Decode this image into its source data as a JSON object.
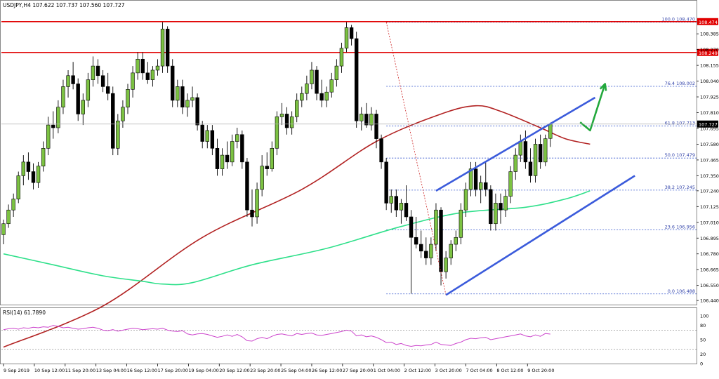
{
  "chart_data": [
    {
      "type": "candlestick",
      "title": "USDJPY,H4  107.622 107.737 107.560 107.727",
      "symbol": "USDJPY",
      "timeframe": "H4",
      "ohlc_header": {
        "open": 107.622,
        "high": 107.737,
        "low": 107.56,
        "close": 107.727
      },
      "last_price": "107.727",
      "ylim": [
        106.41,
        108.56
      ],
      "y_ticks": [
        "108.385",
        "108.270",
        "108.155",
        "108.040",
        "107.925",
        "107.810",
        "107.695",
        "107.580",
        "107.465",
        "107.350",
        "107.240",
        "107.125",
        "107.010",
        "106.895",
        "106.780",
        "106.665",
        "106.550",
        "106.440"
      ],
      "x_ticks": [
        "9 Sep 2019",
        "10 Sep 12:00",
        "11 Sep 20:00",
        "13 Sep 04:00",
        "16 Sep 12:00",
        "17 Sep 20:00",
        "19 Sep 04:00",
        "20 Sep 12:00",
        "23 Sep 20:00",
        "25 Sep 04:00",
        "26 Sep 12:00",
        "27 Sep 20:00",
        "1 Oct 04:00",
        "2 Oct 12:00",
        "3 Oct 20:00",
        "7 Oct 04:00",
        "8 Oct 12:00",
        "9 Oct 20:00"
      ],
      "colors": {
        "bull": "#7cc242",
        "bear": "#000000",
        "ma_slow": "#b22222",
        "ma_fast": "#2ee08a",
        "fib": "#3355cc",
        "channel": "#3b5bdb",
        "resistance": "#e00000",
        "arrow": "#22a83c"
      },
      "resistance_lines": [
        {
          "price": 108.474,
          "label": "108.474"
        },
        {
          "price": 108.249,
          "label": "108.249"
        }
      ],
      "fibonacci": [
        {
          "label": "100.0 108.470",
          "price": 108.47
        },
        {
          "label": "76.4 108.002",
          "price": 108.002
        },
        {
          "label": "61.8 107.713",
          "price": 107.713
        },
        {
          "label": "50.0 107.479",
          "price": 107.479
        },
        {
          "label": "38.2 107.245",
          "price": 107.245
        },
        {
          "label": "23.6 106.956",
          "price": 106.956
        },
        {
          "label": "0.0 106.488",
          "price": 106.488
        }
      ],
      "candles": [
        {
          "o": 106.92,
          "h": 107.03,
          "l": 106.85,
          "c": 107.0
        },
        {
          "o": 107.0,
          "h": 107.14,
          "l": 106.97,
          "c": 107.1
        },
        {
          "o": 107.1,
          "h": 107.22,
          "l": 107.05,
          "c": 107.18
        },
        {
          "o": 107.18,
          "h": 107.38,
          "l": 107.15,
          "c": 107.35
        },
        {
          "o": 107.35,
          "h": 107.5,
          "l": 107.28,
          "c": 107.45
        },
        {
          "o": 107.45,
          "h": 107.52,
          "l": 107.32,
          "c": 107.38
        },
        {
          "o": 107.38,
          "h": 107.44,
          "l": 107.25,
          "c": 107.3
        },
        {
          "o": 107.3,
          "h": 107.45,
          "l": 107.26,
          "c": 107.42
        },
        {
          "o": 107.42,
          "h": 107.6,
          "l": 107.38,
          "c": 107.55
        },
        {
          "o": 107.55,
          "h": 107.78,
          "l": 107.5,
          "c": 107.72
        },
        {
          "o": 107.72,
          "h": 107.82,
          "l": 107.62,
          "c": 107.7
        },
        {
          "o": 107.7,
          "h": 107.9,
          "l": 107.66,
          "c": 107.85
        },
        {
          "o": 107.85,
          "h": 108.05,
          "l": 107.8,
          "c": 108.0
        },
        {
          "o": 108.0,
          "h": 108.12,
          "l": 107.92,
          "c": 108.08
        },
        {
          "o": 108.08,
          "h": 108.18,
          "l": 107.98,
          "c": 108.02
        },
        {
          "o": 108.02,
          "h": 108.06,
          "l": 107.75,
          "c": 107.8
        },
        {
          "o": 107.8,
          "h": 107.95,
          "l": 107.72,
          "c": 107.9
        },
        {
          "o": 107.9,
          "h": 108.1,
          "l": 107.85,
          "c": 108.05
        },
        {
          "o": 108.05,
          "h": 108.22,
          "l": 108.0,
          "c": 108.15
        },
        {
          "o": 108.15,
          "h": 108.2,
          "l": 108.02,
          "c": 108.08
        },
        {
          "o": 108.08,
          "h": 108.12,
          "l": 107.96,
          "c": 108.0
        },
        {
          "o": 108.0,
          "h": 108.1,
          "l": 107.9,
          "c": 107.95
        },
        {
          "o": 107.95,
          "h": 108.0,
          "l": 107.5,
          "c": 107.55
        },
        {
          "o": 107.55,
          "h": 107.8,
          "l": 107.5,
          "c": 107.75
        },
        {
          "o": 107.75,
          "h": 107.9,
          "l": 107.7,
          "c": 107.85
        },
        {
          "o": 107.85,
          "h": 108.02,
          "l": 107.8,
          "c": 107.98
        },
        {
          "o": 107.98,
          "h": 108.15,
          "l": 107.92,
          "c": 108.1
        },
        {
          "o": 108.1,
          "h": 108.25,
          "l": 108.05,
          "c": 108.2
        },
        {
          "o": 108.2,
          "h": 108.25,
          "l": 108.05,
          "c": 108.1
        },
        {
          "o": 108.1,
          "h": 108.18,
          "l": 108.02,
          "c": 108.05
        },
        {
          "o": 108.05,
          "h": 108.15,
          "l": 108.0,
          "c": 108.12
        },
        {
          "o": 108.12,
          "h": 108.2,
          "l": 108.08,
          "c": 108.15
        },
        {
          "o": 108.15,
          "h": 108.47,
          "l": 108.1,
          "c": 108.42
        },
        {
          "o": 108.42,
          "h": 108.44,
          "l": 108.1,
          "c": 108.15
        },
        {
          "o": 108.15,
          "h": 108.2,
          "l": 107.85,
          "c": 107.9
        },
        {
          "o": 107.9,
          "h": 108.05,
          "l": 107.85,
          "c": 108.0
        },
        {
          "o": 108.0,
          "h": 108.05,
          "l": 107.8,
          "c": 107.85
        },
        {
          "o": 107.85,
          "h": 107.95,
          "l": 107.78,
          "c": 107.9
        },
        {
          "o": 107.9,
          "h": 108.0,
          "l": 107.85,
          "c": 107.92
        },
        {
          "o": 107.92,
          "h": 107.95,
          "l": 107.68,
          "c": 107.72
        },
        {
          "o": 107.72,
          "h": 107.75,
          "l": 107.55,
          "c": 107.6
        },
        {
          "o": 107.6,
          "h": 107.72,
          "l": 107.55,
          "c": 107.68
        },
        {
          "o": 107.68,
          "h": 107.72,
          "l": 107.5,
          "c": 107.55
        },
        {
          "o": 107.55,
          "h": 107.62,
          "l": 107.35,
          "c": 107.4
        },
        {
          "o": 107.4,
          "h": 107.55,
          "l": 107.35,
          "c": 107.5
        },
        {
          "o": 107.5,
          "h": 107.6,
          "l": 107.4,
          "c": 107.45
        },
        {
          "o": 107.45,
          "h": 107.65,
          "l": 107.42,
          "c": 107.6
        },
        {
          "o": 107.6,
          "h": 107.7,
          "l": 107.55,
          "c": 107.65
        },
        {
          "o": 107.65,
          "h": 107.68,
          "l": 107.4,
          "c": 107.45
        },
        {
          "o": 107.45,
          "h": 107.48,
          "l": 107.05,
          "c": 107.1
        },
        {
          "o": 107.1,
          "h": 107.25,
          "l": 106.98,
          "c": 107.05
        },
        {
          "o": 107.05,
          "h": 107.3,
          "l": 107.0,
          "c": 107.25
        },
        {
          "o": 107.25,
          "h": 107.5,
          "l": 107.2,
          "c": 107.42
        },
        {
          "o": 107.42,
          "h": 107.52,
          "l": 107.35,
          "c": 107.4
        },
        {
          "o": 107.4,
          "h": 107.6,
          "l": 107.38,
          "c": 107.55
        },
        {
          "o": 107.55,
          "h": 107.82,
          "l": 107.5,
          "c": 107.78
        },
        {
          "o": 107.78,
          "h": 107.88,
          "l": 107.72,
          "c": 107.8
        },
        {
          "o": 107.8,
          "h": 107.85,
          "l": 107.65,
          "c": 107.7
        },
        {
          "o": 107.7,
          "h": 107.82,
          "l": 107.65,
          "c": 107.78
        },
        {
          "o": 107.78,
          "h": 107.95,
          "l": 107.74,
          "c": 107.9
        },
        {
          "o": 107.9,
          "h": 108.0,
          "l": 107.85,
          "c": 107.95
        },
        {
          "o": 107.95,
          "h": 108.08,
          "l": 107.9,
          "c": 108.02
        },
        {
          "o": 108.02,
          "h": 108.18,
          "l": 107.98,
          "c": 108.12
        },
        {
          "o": 108.12,
          "h": 108.15,
          "l": 107.9,
          "c": 107.95
        },
        {
          "o": 107.95,
          "h": 108.05,
          "l": 107.85,
          "c": 107.9
        },
        {
          "o": 107.9,
          "h": 108.0,
          "l": 107.85,
          "c": 107.96
        },
        {
          "o": 107.96,
          "h": 108.1,
          "l": 107.92,
          "c": 108.05
        },
        {
          "o": 108.05,
          "h": 108.2,
          "l": 108.0,
          "c": 108.15
        },
        {
          "o": 108.15,
          "h": 108.32,
          "l": 108.1,
          "c": 108.28
        },
        {
          "o": 108.28,
          "h": 108.47,
          "l": 108.25,
          "c": 108.43
        },
        {
          "o": 108.43,
          "h": 108.45,
          "l": 108.3,
          "c": 108.35
        },
        {
          "o": 108.35,
          "h": 108.4,
          "l": 107.7,
          "c": 107.75
        },
        {
          "o": 107.75,
          "h": 107.85,
          "l": 107.68,
          "c": 107.8
        },
        {
          "o": 107.8,
          "h": 107.88,
          "l": 107.7,
          "c": 107.72
        },
        {
          "o": 107.72,
          "h": 107.85,
          "l": 107.68,
          "c": 107.8
        },
        {
          "o": 107.8,
          "h": 107.83,
          "l": 107.55,
          "c": 107.62
        },
        {
          "o": 107.62,
          "h": 107.65,
          "l": 107.4,
          "c": 107.45
        },
        {
          "o": 107.45,
          "h": 107.48,
          "l": 107.1,
          "c": 107.15
        },
        {
          "o": 107.15,
          "h": 107.25,
          "l": 107.08,
          "c": 107.2
        },
        {
          "o": 107.2,
          "h": 107.25,
          "l": 107.05,
          "c": 107.1
        },
        {
          "o": 107.1,
          "h": 107.18,
          "l": 107.0,
          "c": 107.15
        },
        {
          "o": 107.15,
          "h": 107.28,
          "l": 107.02,
          "c": 107.05
        },
        {
          "o": 107.05,
          "h": 107.1,
          "l": 106.49,
          "c": 106.9
        },
        {
          "o": 106.9,
          "h": 107.05,
          "l": 106.82,
          "c": 106.85
        },
        {
          "o": 106.85,
          "h": 106.95,
          "l": 106.75,
          "c": 106.8
        },
        {
          "o": 106.8,
          "h": 106.9,
          "l": 106.7,
          "c": 106.75
        },
        {
          "o": 106.75,
          "h": 106.9,
          "l": 106.7,
          "c": 106.85
        },
        {
          "o": 106.85,
          "h": 107.15,
          "l": 106.8,
          "c": 107.1
        },
        {
          "o": 107.1,
          "h": 107.12,
          "l": 106.55,
          "c": 106.65
        },
        {
          "o": 106.65,
          "h": 106.8,
          "l": 106.6,
          "c": 106.75
        },
        {
          "o": 106.75,
          "h": 106.88,
          "l": 106.7,
          "c": 106.85
        },
        {
          "o": 106.85,
          "h": 106.95,
          "l": 106.8,
          "c": 106.9
        },
        {
          "o": 106.9,
          "h": 107.15,
          "l": 106.85,
          "c": 107.1
        },
        {
          "o": 107.1,
          "h": 107.3,
          "l": 107.05,
          "c": 107.25
        },
        {
          "o": 107.25,
          "h": 107.45,
          "l": 107.2,
          "c": 107.4
        },
        {
          "o": 107.4,
          "h": 107.45,
          "l": 107.2,
          "c": 107.25
        },
        {
          "o": 107.25,
          "h": 107.35,
          "l": 107.15,
          "c": 107.3
        },
        {
          "o": 107.3,
          "h": 107.45,
          "l": 107.2,
          "c": 107.25
        },
        {
          "o": 107.25,
          "h": 107.28,
          "l": 106.95,
          "c": 107.0
        },
        {
          "o": 107.0,
          "h": 107.22,
          "l": 106.95,
          "c": 107.15
        },
        {
          "o": 107.15,
          "h": 107.22,
          "l": 107.0,
          "c": 107.1
        },
        {
          "o": 107.1,
          "h": 107.25,
          "l": 107.05,
          "c": 107.2
        },
        {
          "o": 107.2,
          "h": 107.42,
          "l": 107.15,
          "c": 107.38
        },
        {
          "o": 107.38,
          "h": 107.55,
          "l": 107.32,
          "c": 107.5
        },
        {
          "o": 107.5,
          "h": 107.65,
          "l": 107.45,
          "c": 107.6
        },
        {
          "o": 107.6,
          "h": 107.68,
          "l": 107.4,
          "c": 107.45
        },
        {
          "o": 107.45,
          "h": 107.55,
          "l": 107.3,
          "c": 107.35
        },
        {
          "o": 107.35,
          "h": 107.62,
          "l": 107.3,
          "c": 107.58
        },
        {
          "o": 107.58,
          "h": 107.65,
          "l": 107.4,
          "c": 107.45
        },
        {
          "o": 107.45,
          "h": 107.65,
          "l": 107.42,
          "c": 107.62
        },
        {
          "o": 107.622,
          "h": 107.737,
          "l": 107.56,
          "c": 107.727
        }
      ],
      "moving_averages": [
        {
          "name": "ma_slow",
          "points": [
            [
              0,
              106.1
            ],
            [
              20,
              106.4
            ],
            [
              40,
              106.9
            ],
            [
              60,
              107.25
            ],
            [
              75,
              107.6
            ],
            [
              88,
              107.8
            ],
            [
              95,
              107.86
            ],
            [
              100,
              107.82
            ],
            [
              108,
              107.7
            ],
            [
              113,
              107.62
            ],
            [
              118,
              107.58
            ]
          ]
        },
        {
          "name": "ma_fast",
          "points": [
            [
              0,
              106.78
            ],
            [
              10,
              106.7
            ],
            [
              20,
              106.62
            ],
            [
              28,
              106.58
            ],
            [
              32,
              106.56
            ],
            [
              38,
              106.57
            ],
            [
              50,
              106.7
            ],
            [
              65,
              106.82
            ],
            [
              80,
              106.98
            ],
            [
              92,
              107.08
            ],
            [
              105,
              107.12
            ],
            [
              113,
              107.18
            ],
            [
              118,
              107.24
            ]
          ]
        }
      ],
      "channel_lines": [
        {
          "from": [
            87,
            107.24
          ],
          "to": [
            119,
            107.92
          ]
        },
        {
          "from": [
            89,
            106.48
          ],
          "to": [
            127,
            107.35
          ]
        }
      ],
      "retracement_line": {
        "from": [
          77,
          108.47
        ],
        "to": [
          89,
          106.48
        ]
      },
      "forecast_arrow": {
        "points": [
          [
            116,
            107.74
          ],
          [
            118,
            107.68
          ],
          [
            121,
            108.02
          ]
        ]
      },
      "rsi": {
        "label": "RSI(14) 61.7890",
        "period": 14,
        "value": 61.789,
        "ylim": [
          0,
          100
        ],
        "y_ticks": [
          "100",
          "80",
          "50",
          "20",
          "0"
        ],
        "levels": [
          70,
          30
        ],
        "color": "#cc44cc",
        "values": [
          71,
          73,
          74,
          72,
          75,
          74,
          76,
          75,
          77,
          76,
          80,
          78,
          75,
          76,
          74,
          72,
          73,
          75,
          76,
          74,
          70,
          69,
          71,
          68,
          70,
          72,
          74,
          73,
          71,
          72,
          73,
          72,
          74,
          70,
          68,
          67,
          69,
          62,
          60,
          62,
          63,
          61,
          58,
          55,
          57,
          60,
          57,
          61,
          56,
          48,
          47,
          52,
          55,
          52,
          57,
          61,
          62,
          60,
          58,
          63,
          61,
          63,
          64,
          60,
          59,
          61,
          63,
          65,
          67,
          70,
          68,
          58,
          60,
          56,
          58,
          55,
          50,
          44,
          45,
          40,
          42,
          38,
          36,
          38,
          37,
          39,
          40,
          45,
          40,
          39,
          38,
          42,
          45,
          50,
          53,
          52,
          54,
          55,
          50,
          52,
          54,
          56,
          58,
          60,
          62,
          58,
          56,
          60,
          57,
          63,
          61.79
        ]
      }
    }
  ]
}
